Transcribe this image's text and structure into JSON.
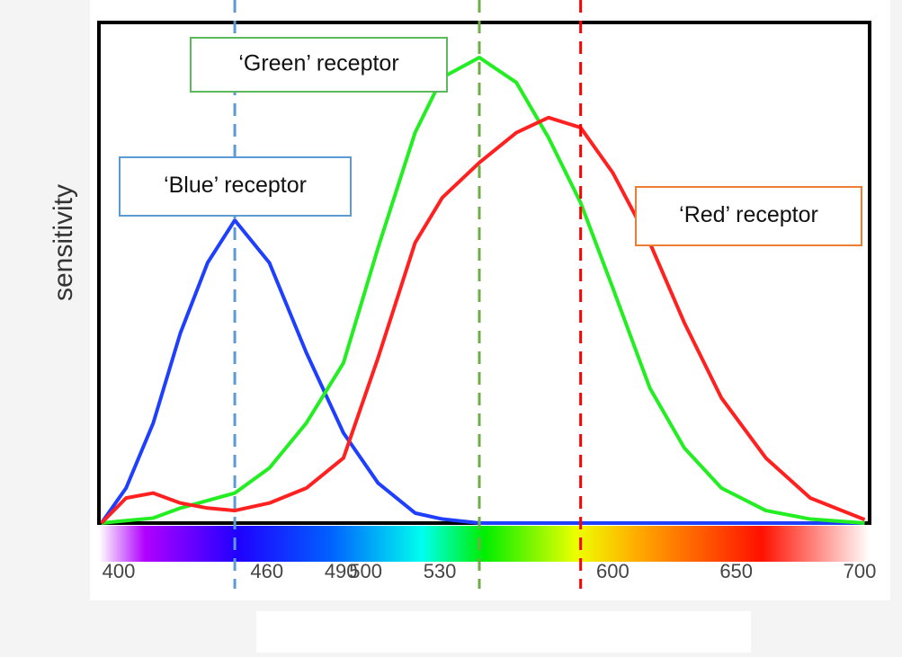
{
  "chart_data": {
    "type": "line",
    "y_label": "sensitivity",
    "x": [
      393,
      403,
      414,
      425,
      436,
      447,
      461,
      476,
      491,
      505,
      520,
      531,
      546,
      561,
      574,
      587,
      600,
      615,
      629,
      644,
      662,
      680,
      702
    ],
    "series": [
      {
        "name": "‘Blue’ receptor",
        "color": "#1f3fff",
        "box_color": "#5b9bd5",
        "values": [
          0,
          0.07,
          0.2,
          0.38,
          0.52,
          0.605,
          0.52,
          0.34,
          0.18,
          0.08,
          0.02,
          0.008,
          0,
          0,
          0,
          0,
          0,
          0,
          0,
          0,
          0,
          0,
          0
        ]
      },
      {
        "name": "‘Green’ receptor",
        "color": "#22ee22",
        "box_color": "#5cb85c",
        "values": [
          0,
          0.005,
          0.01,
          0.03,
          0.045,
          0.06,
          0.11,
          0.2,
          0.32,
          0.55,
          0.78,
          0.89,
          0.93,
          0.88,
          0.77,
          0.64,
          0.47,
          0.27,
          0.15,
          0.07,
          0.025,
          0.008,
          0
        ]
      },
      {
        "name": "‘Red’ receptor",
        "color": "#ff2020",
        "box_color": "#ed7d31",
        "values": [
          0,
          0.05,
          0.06,
          0.04,
          0.03,
          0.025,
          0.04,
          0.07,
          0.13,
          0.33,
          0.56,
          0.65,
          0.72,
          0.78,
          0.81,
          0.79,
          0.7,
          0.56,
          0.4,
          0.25,
          0.13,
          0.05,
          0.007
        ]
      }
    ],
    "reference_lines": [
      {
        "value": 447,
        "color": "#5b9bd5"
      },
      {
        "value": 546,
        "color": "#70ad47"
      },
      {
        "value": 587,
        "color": "#ff0000"
      }
    ],
    "xlim": [
      392,
      704
    ],
    "xticks": [
      400,
      460,
      490,
      500,
      530,
      600,
      650,
      700
    ],
    "ylim": [
      0,
      1
    ]
  }
}
